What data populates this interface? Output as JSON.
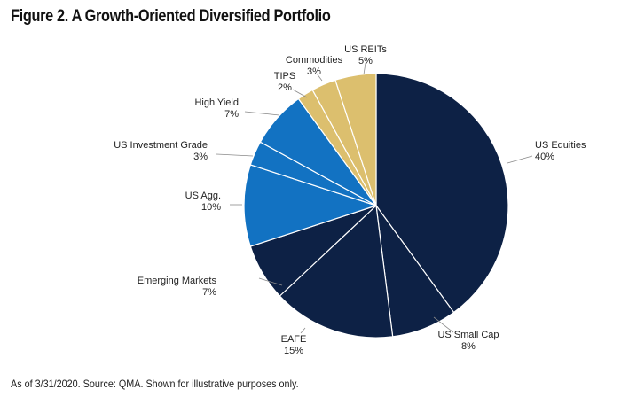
{
  "title": "Figure 2. A Growth-Oriented Diversified Portfolio",
  "footnote": "As of 3/31/2020. Source: QMA. Shown for illustrative purposes only.",
  "colors": {
    "equity": "#0d2145",
    "fixed_income": "#1272c2",
    "real_assets": "#dcbf6e",
    "separator": "#ffffff",
    "leader": "#8a8a8a"
  },
  "chart_data": {
    "type": "pie",
    "title": "Figure 2. A Growth-Oriented Diversified Portfolio",
    "units": "%",
    "slices": [
      {
        "label": "US Equities",
        "value": 40,
        "pct_label": "40%",
        "color": "#0d2145"
      },
      {
        "label": "US Small Cap",
        "value": 8,
        "pct_label": "8%",
        "color": "#0d2145"
      },
      {
        "label": "EAFE",
        "value": 15,
        "pct_label": "15%",
        "color": "#0d2145"
      },
      {
        "label": "Emerging Markets",
        "value": 7,
        "pct_label": "7%",
        "color": "#0d2145"
      },
      {
        "label": "US Agg.",
        "value": 10,
        "pct_label": "10%",
        "color": "#1272c2"
      },
      {
        "label": "US Investment Grade",
        "value": 3,
        "pct_label": "3%",
        "color": "#1272c2"
      },
      {
        "label": "High Yield",
        "value": 7,
        "pct_label": "7%",
        "color": "#1272c2"
      },
      {
        "label": "TIPS",
        "value": 2,
        "pct_label": "2%",
        "color": "#dcbf6e"
      },
      {
        "label": "Commodities",
        "value": 3,
        "pct_label": "3%",
        "color": "#dcbf6e"
      },
      {
        "label": "US REITs",
        "value": 5,
        "pct_label": "5%",
        "color": "#dcbf6e"
      }
    ],
    "start": "12 o'clock",
    "direction": "clockwise",
    "legend": "none (direct labels with leader lines)"
  }
}
